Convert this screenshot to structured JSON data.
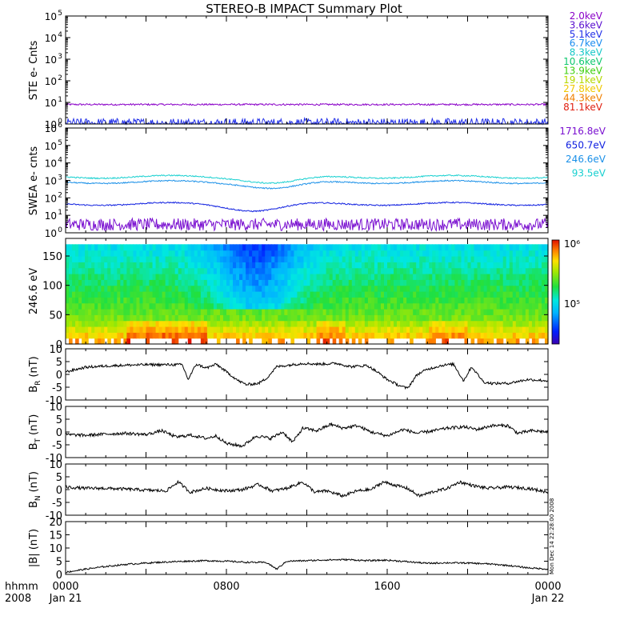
{
  "title": "STEREO-B IMPACT Summary Plot",
  "colors": {
    "frame": "#000000",
    "background": "#ffffff",
    "mag_line": "#000000"
  },
  "ste_energy_legend": [
    {
      "label": "2.0keV",
      "color": "#8a00c8"
    },
    {
      "label": "3.6keV",
      "color": "#5a10d0"
    },
    {
      "label": "5.1keV",
      "color": "#2230e8"
    },
    {
      "label": "6.7keV",
      "color": "#1a8cf0"
    },
    {
      "label": "8.3keV",
      "color": "#16c8c8"
    },
    {
      "label": "10.6keV",
      "color": "#10c870"
    },
    {
      "label": "13.9keV",
      "color": "#40d010"
    },
    {
      "label": "19.1keV",
      "color": "#b4d800"
    },
    {
      "label": "27.8keV",
      "color": "#f0c800"
    },
    {
      "label": "44.3keV",
      "color": "#f08000"
    },
    {
      "label": "81.1keV",
      "color": "#e02010"
    }
  ],
  "swea_energy_legend": [
    {
      "label": "1716.8eV",
      "color": "#7a10d0"
    },
    {
      "label": "650.7eV",
      "color": "#1020e0"
    },
    {
      "label": "246.6eV",
      "color": "#1a90e8"
    },
    {
      "label": "93.5eV",
      "color": "#18d0d0"
    }
  ],
  "side_stamp": "Mon Dec 14 22:28:00 2008",
  "x_axis": {
    "corner_label_line1": "hhmm",
    "corner_label_line2": "2008",
    "ticks": [
      {
        "hour": 0,
        "line1": "0000",
        "line2": "Jan 21"
      },
      {
        "hour": 8,
        "line1": "0800",
        "line2": ""
      },
      {
        "hour": 16,
        "line1": "1600",
        "line2": ""
      },
      {
        "hour": 24,
        "line1": "0000",
        "line2": "Jan 22"
      }
    ],
    "range_hours": [
      0,
      24
    ]
  },
  "chart_data": [
    {
      "type": "line",
      "panel": "ste",
      "ylabel": "STE e- Cnts",
      "yscale": "log",
      "ylim": [
        1,
        100000
      ],
      "y_tick_exponents": [
        0,
        1,
        2,
        3,
        4,
        5
      ],
      "series": [
        {
          "name": "2.0keV",
          "approx_level": 8,
          "noise": "low"
        },
        {
          "name": "5.1keV",
          "approx_level": 1.1,
          "noise": "high"
        }
      ]
    },
    {
      "type": "line",
      "panel": "swea",
      "ylabel": "SWEA e- cnts",
      "yscale": "log",
      "ylim": [
        1,
        1000000
      ],
      "y_tick_exponents": [
        0,
        1,
        2,
        3,
        4,
        5,
        6
      ],
      "series": [
        {
          "name": "93.5eV",
          "approx_level": 1600,
          "dip_near_hour": 10.5
        },
        {
          "name": "246.6eV",
          "approx_level": 800,
          "dip_near_hour": 10.5
        },
        {
          "name": "650.7eV",
          "approx_level": 45,
          "dip_near_hour": 9.5
        },
        {
          "name": "1716.8eV",
          "approx_level": 3,
          "noise": "high"
        }
      ]
    },
    {
      "type": "heatmap",
      "panel": "pitch_angle",
      "ylabel": "246.6 eV",
      "ylim": [
        0,
        180
      ],
      "y_ticks": [
        0,
        50,
        100,
        150
      ],
      "colorbar": {
        "scale": "log",
        "tick_labels": [
          "10⁵",
          "10⁶"
        ]
      }
    },
    {
      "type": "line",
      "panel": "br",
      "ylabel_main": "B",
      "ylabel_sub": "R",
      "ylabel_unit": "(nT)",
      "ylim": [
        -10,
        10
      ],
      "y_ticks": [
        -10,
        -5,
        0,
        5,
        10
      ],
      "x_hours": [
        0,
        1,
        2,
        3,
        4,
        5,
        5.8,
        6.1,
        6.5,
        7,
        7.5,
        8,
        8.6,
        9,
        9.6,
        10,
        10.5,
        11,
        11.8,
        12.6,
        13.5,
        14.2,
        15,
        15.5,
        16,
        16.5,
        17,
        17.5,
        18,
        18.7,
        19.3,
        19.8,
        20.2,
        20.8,
        21.2,
        22,
        23,
        24
      ],
      "values": [
        1,
        2.8,
        3.3,
        3.6,
        3.8,
        3.8,
        3.8,
        -2,
        4,
        2.5,
        4,
        1,
        -2.5,
        -4,
        -3.5,
        -1.5,
        3,
        3.5,
        4.3,
        4,
        4.3,
        3,
        3.5,
        1,
        -2,
        -4,
        -5.5,
        0,
        2,
        3.5,
        4,
        -2.5,
        3,
        -3,
        -3.5,
        -3.5,
        -2,
        -2.5
      ]
    },
    {
      "type": "line",
      "panel": "bt",
      "ylabel_main": "B",
      "ylabel_sub": "T",
      "ylabel_unit": "(nT)",
      "ylim": [
        -10,
        10
      ],
      "y_ticks": [
        -10,
        -5,
        0,
        5,
        10
      ],
      "x_hours": [
        0,
        1,
        2,
        3,
        4,
        4.8,
        5.5,
        6.2,
        7,
        7.5,
        8,
        8.8,
        9.5,
        10.2,
        10.8,
        11.3,
        11.8,
        12.5,
        13.2,
        13.8,
        14.5,
        15.2,
        16,
        16.8,
        17.5,
        18.3,
        19,
        19.8,
        20.5,
        21.2,
        22,
        22.5,
        23.2,
        24
      ],
      "values": [
        -1,
        -1.3,
        -0.8,
        -0.5,
        -1,
        0.5,
        -2,
        -1.2,
        -2.5,
        -1.5,
        -4.5,
        -5.5,
        -1.5,
        -2.5,
        0,
        -4,
        1.5,
        0.5,
        3,
        1.5,
        2.5,
        0,
        -1.5,
        1,
        -0.5,
        0.5,
        1.5,
        2,
        1,
        2.5,
        2.5,
        -0.5,
        0.5,
        0
      ]
    },
    {
      "type": "line",
      "panel": "bn",
      "ylabel_main": "B",
      "ylabel_sub": "N",
      "ylabel_unit": "(nT)",
      "ylim": [
        -10,
        10
      ],
      "y_ticks": [
        -10,
        -5,
        0,
        5,
        10
      ],
      "x_hours": [
        0,
        1,
        2,
        3,
        4,
        5,
        5.6,
        6.2,
        7,
        8,
        8.8,
        9.6,
        10.3,
        11,
        11.8,
        12.4,
        13,
        13.8,
        14.5,
        15.2,
        15.8,
        16.5,
        17,
        17.6,
        18.2,
        19,
        19.6,
        20.3,
        21,
        22,
        23,
        24
      ],
      "values": [
        1,
        0.5,
        0.5,
        0.2,
        -0.2,
        -0.5,
        3,
        -1,
        0.5,
        -0.5,
        0,
        2,
        -0.5,
        0.5,
        3,
        -1,
        -0.5,
        -2.5,
        -0.5,
        0,
        3,
        1.5,
        0.5,
        -2.5,
        -1,
        0.5,
        3,
        1.5,
        0.5,
        1,
        0.5,
        -1
      ]
    },
    {
      "type": "line",
      "panel": "bmag",
      "ylabel": "|B| (nT)",
      "ylim": [
        0,
        20
      ],
      "y_ticks": [
        0,
        5,
        10,
        15,
        20
      ],
      "x_hours": [
        0,
        1,
        2,
        3,
        4,
        5,
        6,
        7,
        8,
        9,
        10,
        10.5,
        11,
        12,
        13,
        14,
        15,
        16,
        17,
        18,
        19,
        20,
        21,
        22,
        23,
        24
      ],
      "values": [
        0.8,
        2,
        3,
        3.8,
        4.3,
        4.7,
        5,
        5.2,
        5,
        4.6,
        4.5,
        2,
        5,
        5.2,
        5.5,
        5.6,
        5.2,
        5.4,
        4.8,
        4.2,
        4.4,
        4.3,
        4,
        3.4,
        2.5,
        2
      ]
    }
  ]
}
